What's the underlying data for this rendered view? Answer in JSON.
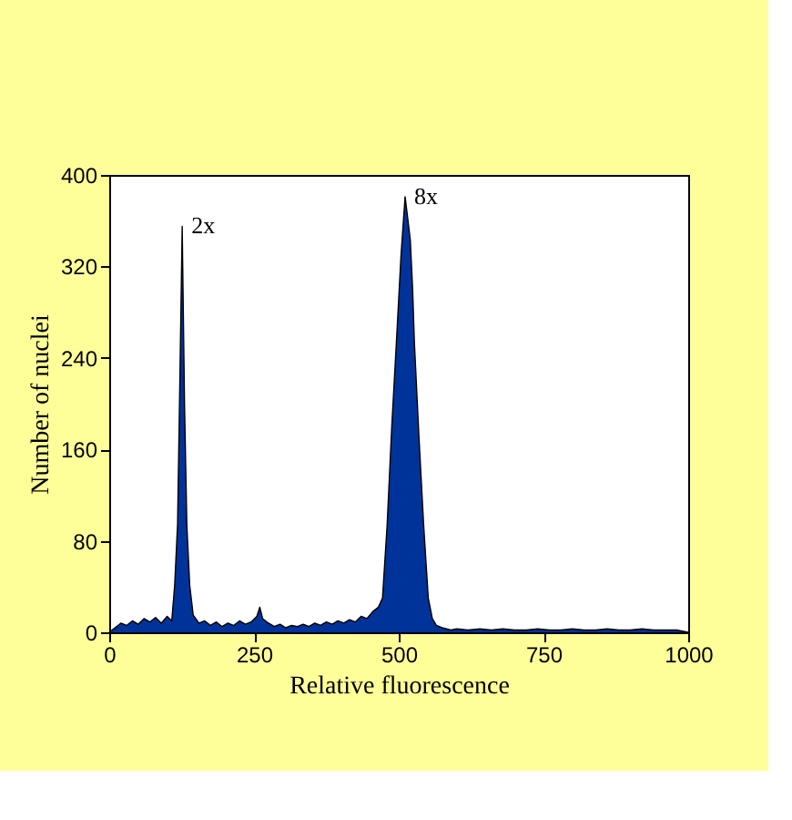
{
  "chart_data": {
    "type": "area",
    "xlabel": "Relative fluorescence",
    "ylabel": "Number of nuclei",
    "x": [
      0,
      10,
      20,
      30,
      40,
      50,
      60,
      70,
      80,
      90,
      100,
      108,
      113,
      118,
      122,
      126,
      130,
      134,
      139,
      145,
      155,
      165,
      175,
      185,
      195,
      205,
      215,
      225,
      235,
      245,
      255,
      260,
      265,
      275,
      285,
      295,
      305,
      315,
      325,
      335,
      345,
      355,
      365,
      375,
      385,
      395,
      405,
      415,
      425,
      435,
      445,
      455,
      465,
      472,
      480,
      488,
      496,
      504,
      511,
      516,
      520,
      524,
      527,
      535,
      543,
      551,
      558,
      565,
      575,
      590,
      600,
      620,
      640,
      660,
      680,
      700,
      720,
      740,
      760,
      780,
      800,
      820,
      840,
      860,
      880,
      900,
      920,
      940,
      960,
      980,
      1000
    ],
    "series": [
      {
        "color": "#003399",
        "values": [
          0,
          4,
          8,
          6,
          10,
          7,
          12,
          9,
          13,
          8,
          14,
          10,
          41,
          94,
          220,
          355,
          200,
          94,
          41,
          15,
          8,
          10,
          6,
          9,
          5,
          8,
          6,
          10,
          7,
          9,
          14,
          22,
          12,
          8,
          5,
          7,
          4,
          6,
          5,
          7,
          5,
          8,
          6,
          9,
          7,
          10,
          8,
          11,
          9,
          14,
          12,
          18,
          22,
          30,
          94,
          180,
          254,
          330,
          381,
          360,
          343,
          300,
          254,
          170,
          94,
          30,
          12,
          6,
          4,
          2,
          3,
          2,
          3,
          2,
          3,
          2,
          2,
          3,
          2,
          2,
          3,
          2,
          2,
          3,
          2,
          2,
          3,
          2,
          2,
          2,
          0
        ]
      }
    ],
    "xlim": [
      0,
      1000
    ],
    "xticks": [
      0,
      250,
      500,
      750,
      1000
    ],
    "ylim": [
      0,
      400
    ],
    "yticks": [
      0,
      80,
      160,
      240,
      320,
      400
    ],
    "annotations": [
      {
        "text": "2x",
        "x": 126,
        "y": 355
      },
      {
        "text": "8x",
        "x": 511,
        "y": 381
      }
    ]
  }
}
